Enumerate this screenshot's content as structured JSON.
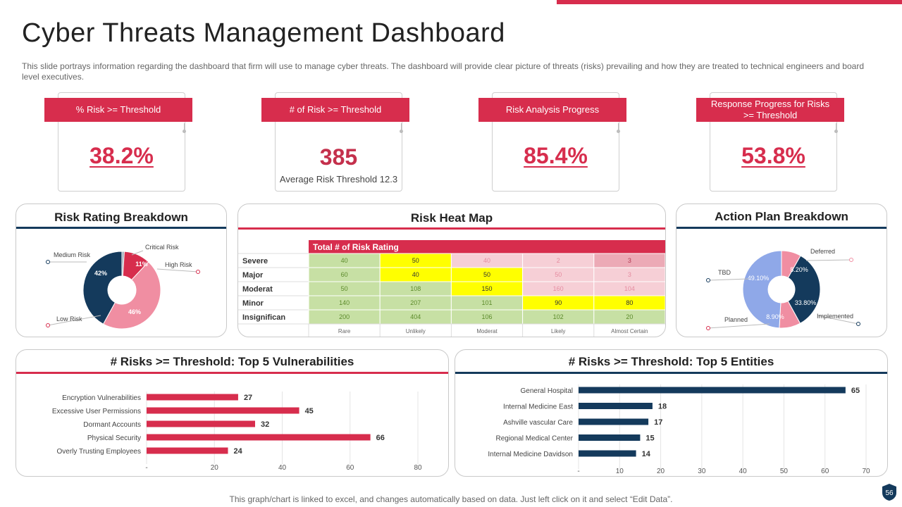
{
  "page": {
    "title": "Cyber Threats Management Dashboard",
    "description": "This slide portrays information regarding the dashboard that firm will use to manage cyber threats. The dashboard will provide clear picture of threats (risks) prevailing and how they are treated to technical engineers and board level executives.",
    "footer": "This graph/chart is linked to excel, and changes automatically based on data. Just left click on it and select “Edit Data”.",
    "page_number": "56"
  },
  "colors": {
    "accent_red": "#d72d4d",
    "navy": "#143a5c",
    "pink": "#f08ea2",
    "periwinkle": "#8fa8e8",
    "heat_green": "#c7e0a4",
    "heat_yellow": "#ffff00",
    "heat_pink": "#f6cfd6",
    "heat_rose": "#ecaab6"
  },
  "kpis": [
    {
      "label": "% Risk >= Threshold",
      "value": "38.2%",
      "sub": ""
    },
    {
      "label": "# of Risk >= Threshold",
      "value": "385",
      "sub": "Average  Risk Threshold  12.3"
    },
    {
      "label": "Risk Analysis Progress",
      "value": "85.4%",
      "sub": ""
    },
    {
      "label": "Response Progress for Risks >= Threshold",
      "value": "53.8%",
      "sub": ""
    }
  ],
  "panels": {
    "risk_rating": "Risk  Rating Breakdown",
    "heat_map": "Risk  Heat Map",
    "action_plan": "Action Plan Breakdown",
    "vulnerabilities": "# Risks  >= Threshold: Top 5 Vulnerabilities",
    "entities": "# Risks  >= Threshold: Top 5 Entities"
  },
  "chart_data": [
    {
      "id": "risk_rating",
      "type": "pie",
      "title": "Risk  Rating Breakdown",
      "slices": [
        {
          "name": "Critical Risk",
          "value": 1,
          "label": "",
          "color": "#9aa7b6"
        },
        {
          "name": "High Risk",
          "value": 11,
          "label": "11%",
          "color": "#d72d4d"
        },
        {
          "name": "Low Risk",
          "value": 46,
          "label": "46%",
          "color": "#f08ea2"
        },
        {
          "name": "Medium Risk",
          "value": 42,
          "label": "42%",
          "color": "#143a5c"
        }
      ]
    },
    {
      "id": "heat_map",
      "type": "heatmap",
      "title": "Risk  Heat Map",
      "header": "Total # of Risk Rating",
      "rows": [
        "Severe",
        "Major",
        "Moderat",
        "Minor",
        "Insignifican"
      ],
      "columns": [
        "Rare",
        "Unlikely",
        "Moderat",
        "Likely",
        "Almost Certain"
      ],
      "values": [
        [
          40,
          50,
          40,
          2,
          3
        ],
        [
          60,
          40,
          50,
          50,
          3
        ],
        [
          50,
          108,
          150,
          160,
          104
        ],
        [
          140,
          207,
          101,
          90,
          80
        ],
        [
          200,
          404,
          106,
          102,
          20
        ]
      ],
      "cell_colors": [
        [
          "green",
          "yellow",
          "pink",
          "pink",
          "rose"
        ],
        [
          "green",
          "yellow",
          "yellow",
          "pink",
          "pink"
        ],
        [
          "green",
          "green",
          "yellow",
          "pink",
          "pink"
        ],
        [
          "green",
          "green",
          "green",
          "yellow",
          "yellow"
        ],
        [
          "green",
          "green",
          "green",
          "green",
          "green"
        ]
      ]
    },
    {
      "id": "action_plan",
      "type": "pie",
      "title": "Action Plan Breakdown",
      "slices": [
        {
          "name": "Deferred",
          "value": 8.2,
          "label": "8.20%",
          "color": "#f08ea2"
        },
        {
          "name": "Implemented",
          "value": 33.8,
          "label": "33.80%",
          "color": "#143a5c"
        },
        {
          "name": "Planned",
          "value": 8.9,
          "label": "8.90%",
          "color": "#f08ea2"
        },
        {
          "name": "TBD",
          "value": 49.1,
          "label": "49.10%",
          "color": "#8fa8e8"
        }
      ]
    },
    {
      "id": "vulnerabilities",
      "type": "bar",
      "orientation": "horizontal",
      "title": "# Risks  >= Threshold: Top 5 Vulnerabilities",
      "categories": [
        "Encryption Vulnerabilities",
        "Excessive User Permissions",
        "Dormant Accounts",
        "Physical Security",
        "Overly Trusting Employees"
      ],
      "values": [
        27,
        45,
        32,
        66,
        24
      ],
      "xlim": [
        0,
        80
      ],
      "xticks": [
        "-",
        "20",
        "40",
        "60",
        "80"
      ],
      "color": "#d72d4d"
    },
    {
      "id": "entities",
      "type": "bar",
      "orientation": "horizontal",
      "title": "# Risks  >= Threshold: Top 5 Entities",
      "categories": [
        "General Hospital",
        "Internal Medicine East",
        "Ashville vascular Care",
        "Regional Medical Center",
        "Internal Medicine Davidson"
      ],
      "values": [
        65,
        18,
        17,
        15,
        14
      ],
      "xlim": [
        0,
        70
      ],
      "xticks": [
        "-",
        "10",
        "20",
        "30",
        "40",
        "50",
        "60",
        "70"
      ],
      "color": "#143a5c"
    }
  ]
}
